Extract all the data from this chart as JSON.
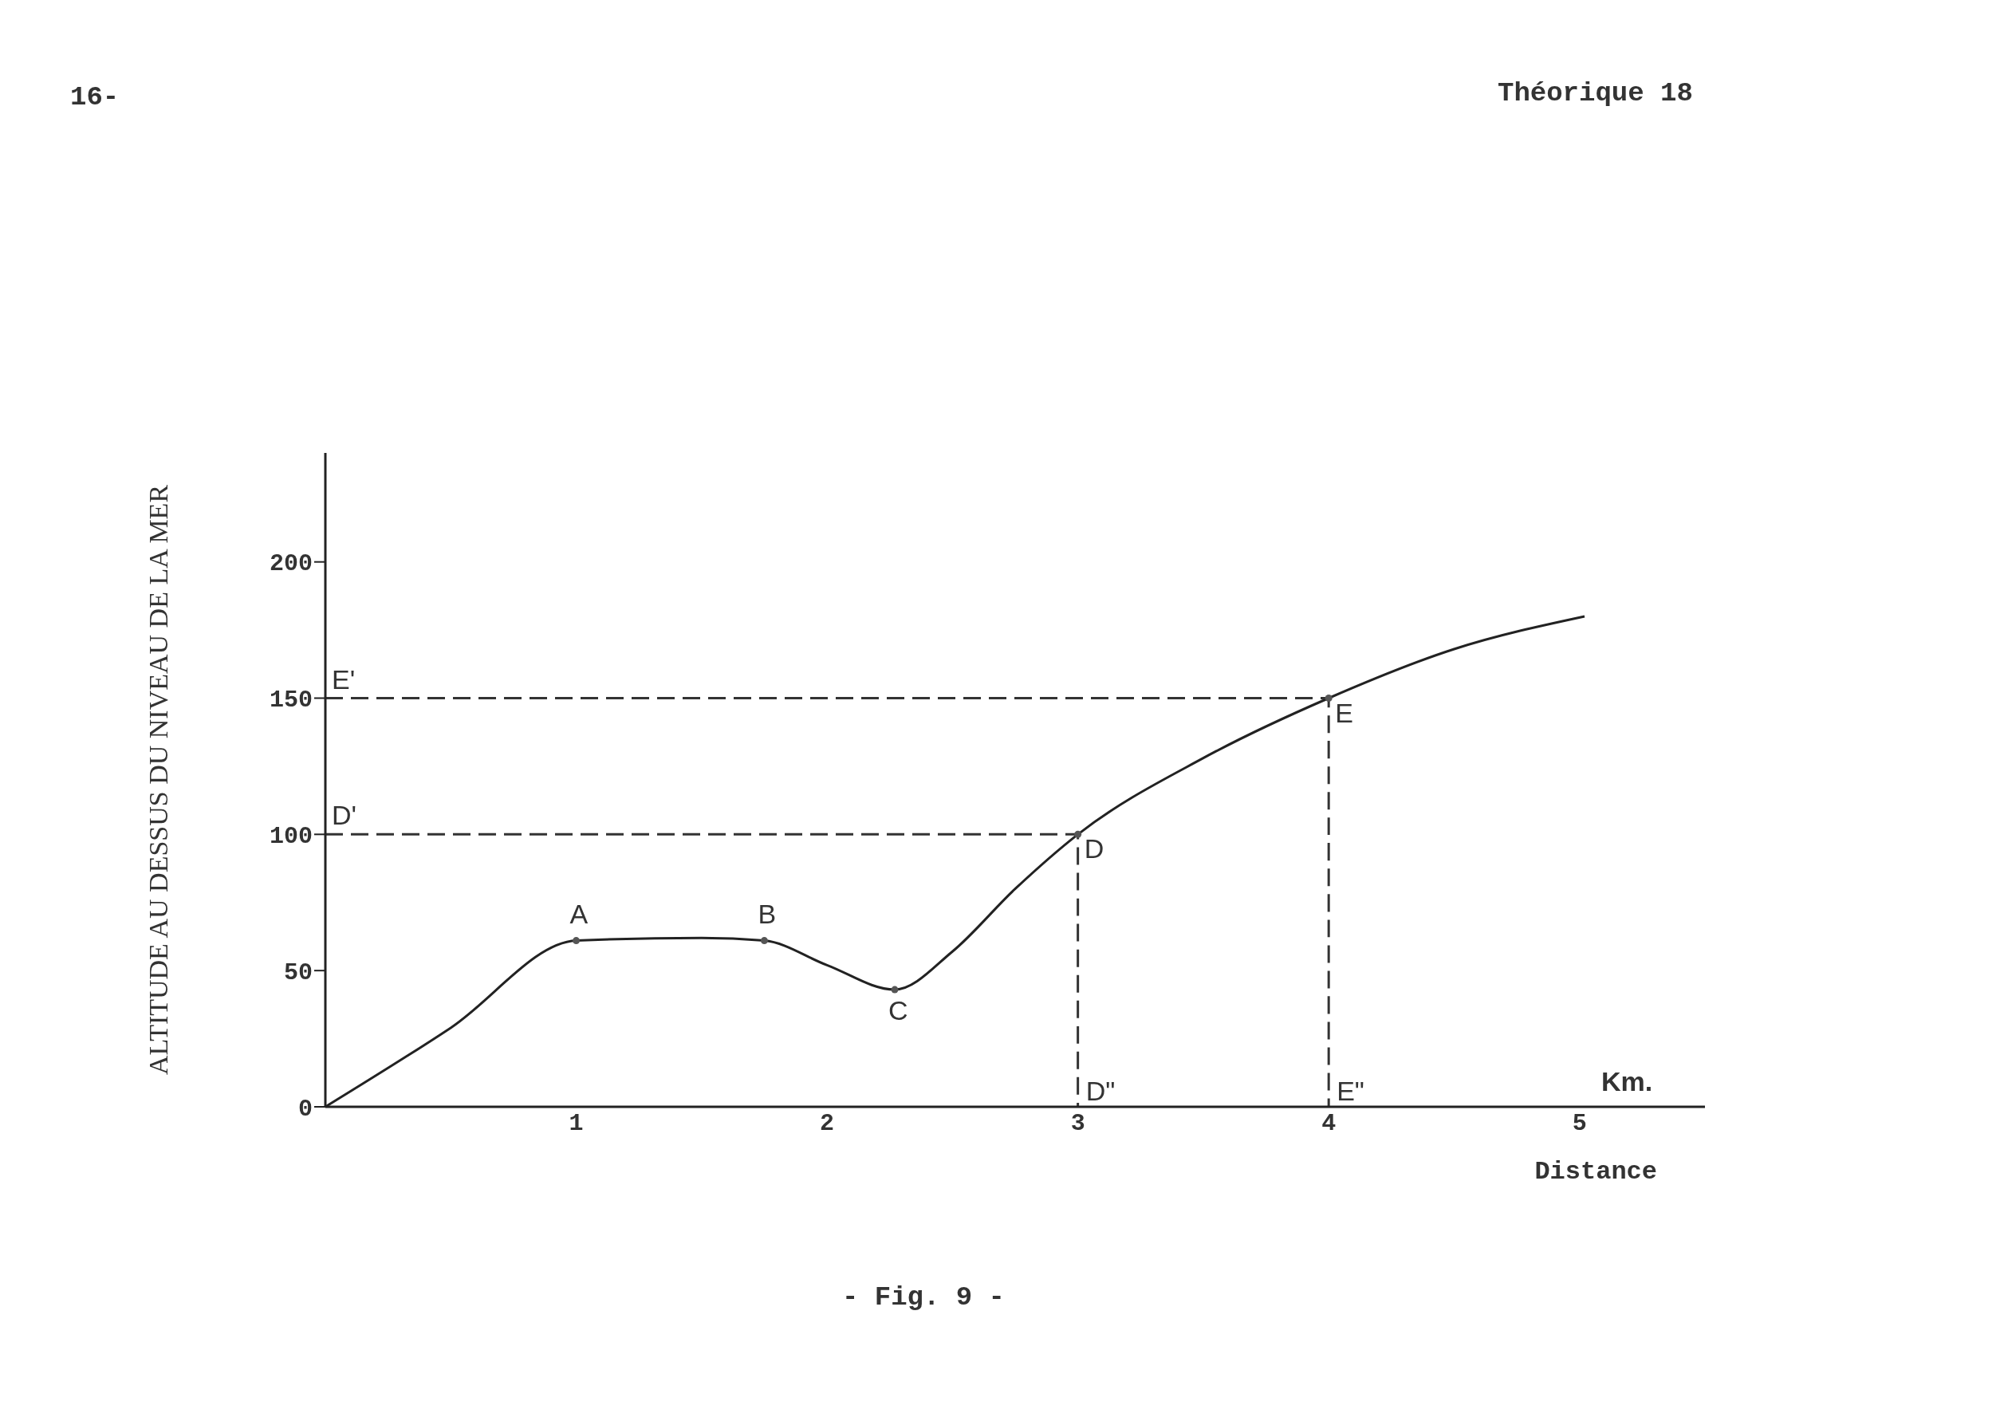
{
  "chart_data": {
    "type": "line",
    "title": "- Fig. 9 -",
    "xlabel": "Distance",
    "ylabel": "ALTITUDE AU DESSUS DU NIVEAU DE LA MER",
    "xlim": [
      0,
      5.5
    ],
    "ylim": [
      0,
      240
    ],
    "xticks": [
      1,
      2,
      3,
      4,
      5
    ],
    "yticks": [
      0,
      50,
      100,
      150,
      200
    ],
    "grid": false,
    "legend": false,
    "series": [
      {
        "color": "#222222",
        "marker": "none",
        "line_style": "solid",
        "x": [
          0,
          0.5,
          1,
          1.5,
          1.75,
          2.0,
          2.27,
          2.5,
          2.75,
          3,
          3.5,
          4,
          4.5,
          5.02
        ],
        "values": [
          0,
          29,
          61,
          62,
          61,
          52,
          43,
          57,
          80,
          100,
          128,
          150,
          168,
          180
        ]
      },
      {
        "type": "line",
        "color": "#333333",
        "marker": "none",
        "line_style": "dashed",
        "x": [
          0,
          3,
          3
        ],
        "values": [
          100,
          100,
          0
        ]
      },
      {
        "type": "line",
        "color": "#333333",
        "marker": "none",
        "line_style": "dashed",
        "x": [
          0,
          4,
          4
        ],
        "values": [
          150,
          150,
          0
        ]
      },
      {
        "type": "scatter",
        "color": "#555555",
        "marker": "circle",
        "x": [
          1,
          1.75,
          2.27,
          3,
          4
        ],
        "values": [
          61,
          61,
          43,
          100,
          150
        ]
      }
    ],
    "annotations": [
      {
        "text": "A",
        "x": 1,
        "y": 61
      },
      {
        "text": "B",
        "x": 1.75,
        "y": 61
      },
      {
        "text": "C",
        "x": 2.27,
        "y": 43
      },
      {
        "text": "D",
        "x": 3,
        "y": 100
      },
      {
        "text": "E",
        "x": 4,
        "y": 150
      },
      {
        "text": "D'",
        "x": 0,
        "y": 100
      },
      {
        "text": "E'",
        "x": 0,
        "y": 150
      },
      {
        "text": "D\"",
        "x": 3,
        "y": 0
      },
      {
        "text": "E\"",
        "x": 4,
        "y": 0
      },
      "Km.",
      "16-",
      "Théorique 18"
    ]
  }
}
